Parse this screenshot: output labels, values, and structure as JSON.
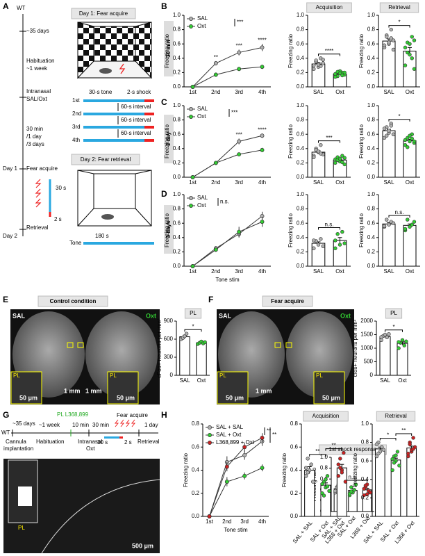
{
  "panels": {
    "letters": [
      "A",
      "B",
      "C",
      "D",
      "E",
      "F",
      "G",
      "H"
    ],
    "rows": [
      "30 min",
      "1 day",
      "3 days"
    ],
    "a": {
      "timeline": [
        "WT",
        "~35 days",
        "Habituation",
        "~1 week",
        "Intranasal",
        "SAL/Oxt",
        "30 min",
        "/1 day",
        "/3 days",
        "Day 1",
        "Fear acquire",
        "30 s",
        "2 s",
        "Retrieval",
        "Day 2"
      ],
      "day1": "Day 1: Fear acquire",
      "tone": "30-s tone",
      "shock": "2-s shock",
      "trials": [
        "1st",
        "2nd",
        "3rd",
        "4th"
      ],
      "interval": "60-s interval",
      "day2": "Day 2: Fear retrieval",
      "tone_dur": "180 s",
      "tone_label": "Tone"
    },
    "e": {
      "title": "Control condition",
      "left": "SAL",
      "right": "Oxt",
      "region": "PL",
      "scale": "1 mm",
      "inset_scale": "50 μm"
    },
    "f": {
      "title": "Fear acquire",
      "left": "SAL",
      "right": "Oxt",
      "region": "PL",
      "scale": "1 mm",
      "inset_scale": "50 μm"
    },
    "g": {
      "drug": "PL L368,899",
      "steps": [
        "~35 days",
        "~1 week",
        "10 min",
        "30 min",
        "Fear acquire",
        "1 day"
      ],
      "wt": "WT",
      "below": [
        "Cannula",
        "implantation",
        "Habituation",
        "Intranasal",
        "Oxt",
        "Retrieval"
      ],
      "tone": "30 s",
      "shock": "2 s",
      "region": "PL",
      "scale": "500 μm"
    }
  },
  "chart_data": [
    {
      "type": "line",
      "ylabel": "Freezing ratio",
      "categories": [
        "1st",
        "2nd",
        "3rd",
        "4th"
      ],
      "ylim": [
        0,
        1
      ],
      "yticks": [
        {
          "value": 0,
          "label": "0.0"
        },
        0.2,
        0.4,
        0.6,
        0.8,
        {
          "value": 1,
          "label": "1.0"
        }
      ],
      "series": [
        {
          "name": "SAL",
          "color": "#b0b0b0",
          "values": [
            0,
            0.33,
            0.48,
            0.55
          ],
          "errors": [
            0.01,
            0.03,
            0.04,
            0.05
          ]
        },
        {
          "name": "Oxt",
          "color": "#33cc33",
          "values": [
            0,
            0.17,
            0.25,
            0.28
          ],
          "errors": [
            0.01,
            0.03,
            0.02,
            0.03
          ]
        }
      ],
      "annotations": [
        "**",
        "***",
        "****",
        "***"
      ]
    },
    {
      "type": "bar",
      "title": "Acquisition",
      "ylabel": "Freezing ratio",
      "categories": [
        "SAL",
        "Oxt"
      ],
      "colors": [
        "#b0b0b0",
        "#33cc33"
      ],
      "values": [
        0.32,
        0.18
      ],
      "errors": [
        0.02,
        0.01
      ],
      "points": [
        [
          0.3,
          0.35,
          0.28,
          0.4,
          0.33,
          0.25,
          0.37,
          0.31,
          0.29,
          0.38
        ],
        [
          0.18,
          0.15,
          0.22,
          0.2,
          0.17,
          0.14,
          0.21,
          0.19,
          0.16,
          0.2
        ]
      ],
      "ylim": [
        0,
        1
      ],
      "yticks": [
        {
          "value": 0,
          "label": "0.0"
        },
        0.2,
        0.4,
        0.6,
        0.8,
        {
          "value": 1,
          "label": "1.0"
        }
      ],
      "annotations": [
        "****"
      ]
    },
    {
      "type": "bar",
      "title": "Retrieval",
      "ylabel": "Freezing ratio",
      "categories": [
        "SAL",
        "Oxt"
      ],
      "colors": [
        "#b0b0b0",
        "#33cc33"
      ],
      "values": [
        0.64,
        0.5
      ],
      "errors": [
        0.03,
        0.05
      ],
      "points": [
        [
          0.55,
          0.72,
          0.6,
          0.8,
          0.65,
          0.58,
          0.7,
          0.62,
          0.68,
          0.52
        ],
        [
          0.3,
          0.62,
          0.45,
          0.7,
          0.25,
          0.55,
          0.48,
          0.6,
          0.4,
          0.65
        ]
      ],
      "ylim": [
        0,
        1
      ],
      "yticks": [
        {
          "value": 0,
          "label": "0.0"
        },
        0.2,
        0.4,
        0.6,
        0.8,
        {
          "value": 1,
          "label": "1.0"
        }
      ],
      "annotations": [
        "*"
      ]
    },
    {
      "type": "line",
      "ylabel": "Freezing ratio",
      "categories": [
        "1st",
        "2nd",
        "3rd",
        "4th"
      ],
      "ylim": [
        0,
        1
      ],
      "yticks": [
        {
          "value": 0,
          "label": "0.0"
        },
        0.2,
        0.4,
        0.6,
        0.8,
        {
          "value": 1,
          "label": "1.0"
        }
      ],
      "series": [
        {
          "name": "SAL",
          "color": "#b0b0b0",
          "values": [
            0,
            0.2,
            0.5,
            0.58
          ],
          "errors": [
            0.01,
            0.02,
            0.04,
            0.03
          ]
        },
        {
          "name": "Oxt",
          "color": "#33cc33",
          "values": [
            0,
            0.2,
            0.32,
            0.38
          ],
          "errors": [
            0.01,
            0.02,
            0.02,
            0.03
          ]
        }
      ],
      "annotations": [
        "***",
        "****",
        "***"
      ]
    },
    {
      "type": "bar",
      "title": "",
      "ylabel": "Freezing ratio",
      "categories": [
        "SAL",
        "Oxt"
      ],
      "colors": [
        "#b0b0b0",
        "#33cc33"
      ],
      "values": [
        0.35,
        0.24
      ],
      "errors": [
        0.02,
        0.01
      ],
      "points": [
        [
          0.3,
          0.4,
          0.35,
          0.45,
          0.32,
          0.28,
          0.38,
          0.36,
          0.33
        ],
        [
          0.2,
          0.28,
          0.22,
          0.3,
          0.18,
          0.25,
          0.24,
          0.26,
          0.21,
          0.27
        ]
      ],
      "ylim": [
        0,
        1
      ],
      "yticks": [
        {
          "value": 0,
          "label": "0.0"
        },
        0.2,
        0.4,
        0.6,
        0.8,
        {
          "value": 1,
          "label": "1.0"
        }
      ],
      "annotations": [
        "***"
      ]
    },
    {
      "type": "bar",
      "title": "",
      "ylabel": "Freezing ratio",
      "categories": [
        "SAL",
        "Oxt"
      ],
      "colors": [
        "#b0b0b0",
        "#33cc33"
      ],
      "values": [
        0.65,
        0.51
      ],
      "errors": [
        0.02,
        0.02
      ],
      "points": [
        [
          0.55,
          0.7,
          0.62,
          0.75,
          0.6,
          0.68,
          0.58,
          0.65,
          0.72
        ],
        [
          0.45,
          0.55,
          0.5,
          0.6,
          0.48,
          0.52,
          0.42,
          0.58,
          0.54,
          0.5
        ]
      ],
      "ylim": [
        0,
        1
      ],
      "yticks": [
        {
          "value": 0,
          "label": "0.0"
        },
        0.2,
        0.4,
        0.6,
        0.8,
        {
          "value": 1,
          "label": "1.0"
        }
      ],
      "annotations": [
        "*"
      ]
    },
    {
      "type": "line",
      "ylabel": "Freezing ratio",
      "xlabel": "Tone stim",
      "categories": [
        "1st",
        "2nd",
        "3rd",
        "4th"
      ],
      "ylim": [
        0,
        1
      ],
      "yticks": [
        {
          "value": 0,
          "label": "0.0"
        },
        0.2,
        0.4,
        0.6,
        0.8,
        {
          "value": 1,
          "label": "1.0"
        }
      ],
      "series": [
        {
          "name": "SAL",
          "color": "#b0b0b0",
          "values": [
            0,
            0.25,
            0.45,
            0.7
          ],
          "errors": [
            0.01,
            0.03,
            0.05,
            0.06
          ]
        },
        {
          "name": "Oxt",
          "color": "#33cc33",
          "values": [
            0,
            0.23,
            0.48,
            0.62
          ],
          "errors": [
            0.01,
            0.03,
            0.07,
            0.07
          ]
        }
      ],
      "annotations": [
        "n.s."
      ]
    },
    {
      "type": "bar",
      "title": "",
      "ylabel": "Freezing ratio",
      "categories": [
        "SAL",
        "Oxt"
      ],
      "colors": [
        "#b0b0b0",
        "#33cc33"
      ],
      "values": [
        0.32,
        0.36
      ],
      "errors": [
        0.02,
        0.04
      ],
      "points": [
        [
          0.25,
          0.35,
          0.3,
          0.38,
          0.28,
          0.36
        ],
        [
          0.25,
          0.45,
          0.3,
          0.48,
          0.32,
          0.36
        ]
      ],
      "ylim": [
        0,
        1
      ],
      "yticks": [
        {
          "value": 0,
          "label": "0.0"
        },
        0.2,
        0.4,
        0.6,
        0.8,
        {
          "value": 1,
          "label": "1.0"
        }
      ],
      "annotations": [
        "n.s."
      ]
    },
    {
      "type": "bar",
      "title": "",
      "ylabel": "Freezing ratio",
      "categories": [
        "SAL",
        "Oxt"
      ],
      "colors": [
        "#b0b0b0",
        "#33cc33"
      ],
      "values": [
        0.59,
        0.57
      ],
      "errors": [
        0.02,
        0.02
      ],
      "points": [
        [
          0.55,
          0.65,
          0.58,
          0.62,
          0.6,
          0.56
        ],
        [
          0.5,
          0.65,
          0.55,
          0.58,
          0.62,
          0.52
        ]
      ],
      "ylim": [
        0,
        1
      ],
      "yticks": [
        {
          "value": 0,
          "label": "0.0"
        },
        0.2,
        0.4,
        0.6,
        0.8,
        {
          "value": 1,
          "label": "1.0"
        }
      ],
      "annotations": [
        "n.s."
      ]
    },
    {
      "type": "bar",
      "title": "PL",
      "ylabel": "cFos+ neurons per mm²",
      "categories": [
        "SAL",
        "Oxt"
      ],
      "colors": [
        "#b0b0b0",
        "#33cc33"
      ],
      "values": [
        640,
        540
      ],
      "errors": [
        25,
        10
      ],
      "points": [
        [
          600,
          620,
          650,
          690
        ],
        [
          520,
          540,
          560,
          530,
          550
        ]
      ],
      "ylim": [
        0,
        900
      ],
      "yticks": [
        0,
        300,
        600,
        900
      ],
      "annotations": [
        "*"
      ]
    },
    {
      "type": "bar",
      "title": "PL",
      "ylabel": "cfos+ neurons per mm²",
      "categories": [
        "SAL",
        "Oxt"
      ],
      "colors": [
        "#b0b0b0",
        "#33cc33"
      ],
      "values": [
        1430,
        1180
      ],
      "errors": [
        35,
        50
      ],
      "points": [
        [
          1300,
          1450,
          1500,
          1400,
          1520,
          1410
        ],
        [
          1000,
          1200,
          1300,
          1100,
          1250,
          1230
        ]
      ],
      "ylim": [
        0,
        2000
      ],
      "yticks": [
        0,
        500,
        1000,
        1500,
        2000
      ],
      "annotations": [
        "*"
      ]
    },
    {
      "type": "bar",
      "title": "1st shock response",
      "ylabel": "Freezing ratio",
      "categories": [
        "SAL + SAL",
        "SAL + Oxt",
        "L368 + Oxt"
      ],
      "colors": [
        "#b0b0b0",
        "#33cc33",
        "#cc2222"
      ],
      "values": [
        0.42,
        0.39,
        0.4
      ],
      "errors": [
        0.02,
        0.03,
        0.03
      ],
      "points": [
        [
          0.35,
          0.45,
          0.5,
          0.4,
          0.42,
          0.38,
          0.44
        ],
        [
          0.3,
          0.45,
          0.35,
          0.4,
          0.5,
          0.33,
          0.37
        ],
        [
          0.3,
          0.45,
          0.5,
          0.38,
          0.35,
          0.42,
          0.48,
          0.32
        ]
      ],
      "ylim": [
        0,
        1
      ],
      "yticks": [
        {
          "value": 0,
          "label": "0.0"
        },
        0.2,
        0.4,
        0.6,
        0.8,
        {
          "value": 1,
          "label": "1.0"
        }
      ],
      "annotations": [
        "n.s."
      ]
    },
    {
      "type": "line",
      "ylabel": "Freezing ratio",
      "xlabel": "Tone stim",
      "categories": [
        "1st",
        "2nd",
        "3rd",
        "4th"
      ],
      "ylim": [
        0,
        0.8
      ],
      "yticks": [
        {
          "value": 0,
          "label": "0.0"
        },
        0.2,
        0.4,
        0.6,
        0.8
      ],
      "series": [
        {
          "name": "SAL + SAL",
          "color": "#b0b0b0",
          "values": [
            0,
            0.47,
            0.53,
            0.65
          ],
          "errors": [
            0.01,
            0.05,
            0.04,
            0.04
          ]
        },
        {
          "name": "SAL + Oxt",
          "color": "#33cc33",
          "values": [
            0,
            0.3,
            0.35,
            0.42
          ],
          "errors": [
            0.01,
            0.04,
            0.03,
            0.03
          ]
        },
        {
          "name": "L368,899 + Oxt",
          "color": "#cc2222",
          "values": [
            0,
            0.43,
            0.6,
            0.68
          ],
          "errors": [
            0.01,
            0.04,
            0.04,
            0.04
          ]
        }
      ],
      "annotations": [
        "**",
        "**"
      ]
    },
    {
      "type": "bar",
      "title": "Acquisition",
      "ylabel": "Freezing ratio",
      "categories": [
        "SAL + SAL",
        "SAL + Oxt",
        "L368 + Oxt"
      ],
      "colors": [
        "#b0b0b0",
        "#33cc33",
        "#cc2222"
      ],
      "values": [
        0.4,
        0.27,
        0.42
      ],
      "errors": [
        0.03,
        0.02,
        0.03
      ],
      "points": [
        [
          0.35,
          0.5,
          0.4,
          0.45,
          0.3,
          0.42,
          0.38
        ],
        [
          0.2,
          0.3,
          0.25,
          0.35,
          0.22,
          0.28,
          0.18,
          0.32,
          0.26
        ],
        [
          0.35,
          0.5,
          0.4,
          0.55,
          0.3,
          0.45,
          0.42,
          0.38
        ]
      ],
      "ylim": [
        0,
        0.8
      ],
      "yticks": [
        {
          "value": 0,
          "label": "0.0"
        },
        0.2,
        0.4,
        0.6,
        0.8
      ],
      "annotations": [
        "**",
        "**"
      ]
    },
    {
      "type": "bar",
      "title": "Retrieval",
      "ylabel": "Freezing ratio",
      "categories": [
        "SAL + SAL",
        "SAL + Oxt",
        "L368 + Oxt"
      ],
      "colors": [
        "#b0b0b0",
        "#33cc33",
        "#cc2222"
      ],
      "values": [
        0.73,
        0.61,
        0.74
      ],
      "errors": [
        0.02,
        0.02,
        0.02
      ],
      "points": [
        [
          0.65,
          0.8,
          0.7,
          0.75,
          0.72,
          0.78,
          0.68
        ],
        [
          0.5,
          0.65,
          0.6,
          0.7,
          0.55,
          0.62,
          0.58,
          0.66
        ],
        [
          0.65,
          0.8,
          0.7,
          0.85,
          0.75,
          0.68,
          0.78,
          0.72,
          0.73
        ]
      ],
      "ylim": [
        0,
        1
      ],
      "yticks": [
        {
          "value": 0,
          "label": "0.0"
        },
        0.2,
        0.4,
        0.6,
        0.8,
        {
          "value": 1,
          "label": "1.0"
        }
      ],
      "annotations": [
        "*",
        "**"
      ]
    }
  ]
}
